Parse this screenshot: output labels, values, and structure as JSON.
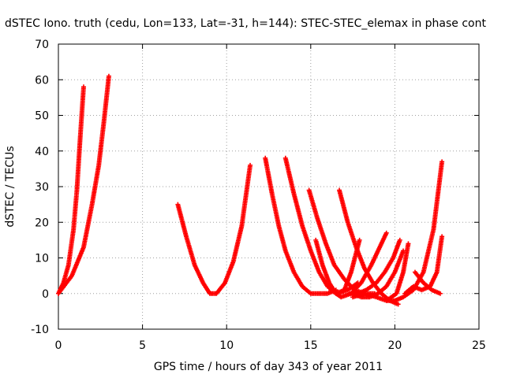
{
  "chart_data": {
    "type": "scatter",
    "title": "dSTEC Iono. truth (cedu, Lon=133, Lat=-31, h=144): STEC-STEC_elemax in phase cont",
    "xlabel": "GPS time / hours of day 343 of year 2011",
    "ylabel": "dSTEC  / TECUs",
    "xlim": [
      0,
      25
    ],
    "ylim": [
      -10,
      70
    ],
    "xticks": [
      0,
      5,
      10,
      15,
      20,
      25
    ],
    "yticks": [
      -10,
      0,
      10,
      20,
      30,
      40,
      50,
      60,
      70
    ],
    "grid": true,
    "marker": "+",
    "color": "#ff0000",
    "series": [
      {
        "x": [
          0.0,
          0.3,
          0.6,
          0.9,
          1.1,
          1.3,
          1.5
        ],
        "y": [
          0,
          3,
          8,
          18,
          29,
          44,
          58
        ]
      },
      {
        "x": [
          0.0,
          0.8,
          1.5,
          2.0,
          2.4,
          2.7,
          3.0
        ],
        "y": [
          0,
          5,
          13,
          25,
          36,
          48,
          61
        ]
      },
      {
        "x": [
          7.1,
          7.6,
          8.1,
          8.6,
          9.0,
          9.4,
          9.9,
          10.4,
          10.9,
          11.4
        ],
        "y": [
          25,
          16,
          8,
          3,
          0,
          0,
          3,
          9,
          19,
          36
        ]
      },
      {
        "x": [
          12.3,
          12.7,
          13.1,
          13.5,
          14.0,
          14.5,
          15.0,
          15.5,
          16.0,
          16.5
        ],
        "y": [
          38,
          28,
          19,
          12,
          6,
          2,
          0,
          0,
          0,
          1
        ]
      },
      {
        "x": [
          13.5,
          14.0,
          14.5,
          15.0,
          15.5,
          16.0,
          16.6,
          17.2,
          17.8
        ],
        "y": [
          38,
          28,
          19,
          12,
          6,
          2,
          0,
          1,
          3
        ]
      },
      {
        "x": [
          14.9,
          15.4,
          15.9,
          16.4,
          17.0,
          17.6,
          18.2,
          18.8
        ],
        "y": [
          29,
          21,
          14,
          8,
          4,
          1,
          0,
          0
        ]
      },
      {
        "x": [
          15.3,
          15.7,
          16.1,
          16.5,
          17.0,
          17.4,
          17.9
        ],
        "y": [
          15,
          8,
          3,
          0,
          1,
          6,
          15
        ]
      },
      {
        "x": [
          16.7,
          17.2,
          17.7,
          18.2,
          18.7,
          19.2,
          19.7,
          20.2
        ],
        "y": [
          29,
          20,
          13,
          7,
          3,
          0,
          -2,
          -3
        ]
      },
      {
        "x": [
          16.2,
          16.8,
          17.4,
          18.0,
          18.6,
          19.2,
          19.5
        ],
        "y": [
          1,
          -1,
          0,
          3,
          8,
          14,
          17
        ]
      },
      {
        "x": [
          17.3,
          17.8,
          18.3,
          18.9,
          19.4,
          19.9,
          20.3
        ],
        "y": [
          0,
          0,
          1,
          3,
          6,
          10,
          15
        ]
      },
      {
        "x": [
          17.5,
          18.0,
          18.5,
          19.0,
          19.5,
          20.0,
          20.5
        ],
        "y": [
          0,
          -1,
          -1,
          0,
          2,
          6,
          12
        ]
      },
      {
        "x": [
          17.5,
          18.2,
          18.9,
          19.5,
          20.1,
          20.5,
          20.8
        ],
        "y": [
          -1,
          0,
          -1,
          -2,
          0,
          6,
          14
        ]
      },
      {
        "x": [
          19.5,
          20.0,
          20.5,
          21.1,
          21.7,
          22.3,
          22.8
        ],
        "y": [
          -2,
          -2,
          -1,
          1,
          6,
          18,
          37
        ]
      },
      {
        "x": [
          20.6,
          21.1,
          21.6,
          22.1,
          22.5,
          22.8
        ],
        "y": [
          0,
          2,
          1,
          2,
          6,
          16
        ]
      },
      {
        "x": [
          21.2,
          21.7,
          22.2,
          22.7
        ],
        "y": [
          6,
          3,
          1,
          0
        ]
      }
    ]
  }
}
